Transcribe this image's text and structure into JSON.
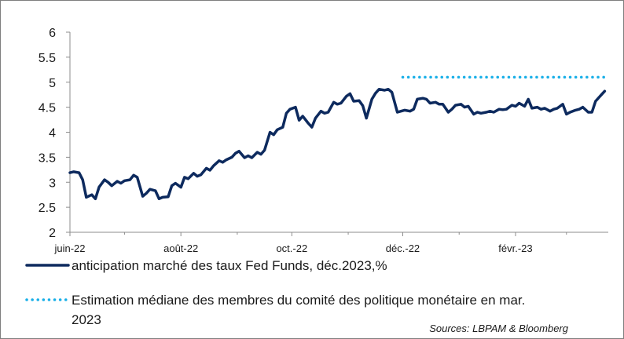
{
  "chart_data": {
    "type": "line",
    "x_ticks": [
      "juin-22",
      "août-22",
      "oct.-22",
      "déc.-22",
      "févr.-23"
    ],
    "y_ticks": [
      "2",
      "2.5",
      "3",
      "3.5",
      "4",
      "4.5",
      "5",
      "5.5",
      "6"
    ],
    "ylim": [
      2,
      6
    ],
    "xlim": [
      "2022-06-01",
      "2023-03-24"
    ],
    "grid": false,
    "legend_position": "bottom",
    "series": [
      {
        "name": "anticipation marché des taux Fed Funds, déc.2023,%",
        "color": "#0d2a5e",
        "style": "solid",
        "points": [
          [
            "2022-06-01",
            3.19
          ],
          [
            "2022-06-03",
            3.21
          ],
          [
            "2022-06-06",
            3.19
          ],
          [
            "2022-06-08",
            3.05
          ],
          [
            "2022-06-10",
            2.7
          ],
          [
            "2022-06-13",
            2.75
          ],
          [
            "2022-06-15",
            2.67
          ],
          [
            "2022-06-17",
            2.9
          ],
          [
            "2022-06-20",
            3.05
          ],
          [
            "2022-06-22",
            3.0
          ],
          [
            "2022-06-24",
            2.93
          ],
          [
            "2022-06-27",
            3.02
          ],
          [
            "2022-06-29",
            2.98
          ],
          [
            "2022-07-01",
            3.03
          ],
          [
            "2022-07-04",
            3.05
          ],
          [
            "2022-07-06",
            3.14
          ],
          [
            "2022-07-08",
            3.1
          ],
          [
            "2022-07-11",
            2.72
          ],
          [
            "2022-07-13",
            2.78
          ],
          [
            "2022-07-15",
            2.86
          ],
          [
            "2022-07-18",
            2.83
          ],
          [
            "2022-07-20",
            2.67
          ],
          [
            "2022-07-22",
            2.7
          ],
          [
            "2022-07-25",
            2.71
          ],
          [
            "2022-07-27",
            2.93
          ],
          [
            "2022-07-29",
            2.98
          ],
          [
            "2022-08-01",
            2.9
          ],
          [
            "2022-08-03",
            3.1
          ],
          [
            "2022-08-05",
            3.07
          ],
          [
            "2022-08-08",
            3.18
          ],
          [
            "2022-08-10",
            3.12
          ],
          [
            "2022-08-12",
            3.15
          ],
          [
            "2022-08-15",
            3.28
          ],
          [
            "2022-08-17",
            3.24
          ],
          [
            "2022-08-19",
            3.33
          ],
          [
            "2022-08-22",
            3.43
          ],
          [
            "2022-08-24",
            3.4
          ],
          [
            "2022-08-26",
            3.45
          ],
          [
            "2022-08-29",
            3.5
          ],
          [
            "2022-08-31",
            3.58
          ],
          [
            "2022-09-02",
            3.62
          ],
          [
            "2022-09-05",
            3.49
          ],
          [
            "2022-09-07",
            3.53
          ],
          [
            "2022-09-09",
            3.49
          ],
          [
            "2022-09-12",
            3.6
          ],
          [
            "2022-09-14",
            3.56
          ],
          [
            "2022-09-16",
            3.64
          ],
          [
            "2022-09-19",
            4.0
          ],
          [
            "2022-09-21",
            3.95
          ],
          [
            "2022-09-23",
            4.05
          ],
          [
            "2022-09-26",
            4.1
          ],
          [
            "2022-09-28",
            4.38
          ],
          [
            "2022-09-30",
            4.46
          ],
          [
            "2022-10-03",
            4.5
          ],
          [
            "2022-10-05",
            4.24
          ],
          [
            "2022-10-07",
            4.32
          ],
          [
            "2022-10-10",
            4.18
          ],
          [
            "2022-10-12",
            4.1
          ],
          [
            "2022-10-14",
            4.28
          ],
          [
            "2022-10-17",
            4.42
          ],
          [
            "2022-10-19",
            4.38
          ],
          [
            "2022-10-21",
            4.4
          ],
          [
            "2022-10-24",
            4.6
          ],
          [
            "2022-10-26",
            4.56
          ],
          [
            "2022-10-28",
            4.58
          ],
          [
            "2022-10-31",
            4.72
          ],
          [
            "2022-11-02",
            4.77
          ],
          [
            "2022-11-04",
            4.62
          ],
          [
            "2022-11-07",
            4.63
          ],
          [
            "2022-11-09",
            4.53
          ],
          [
            "2022-11-11",
            4.28
          ],
          [
            "2022-11-14",
            4.66
          ],
          [
            "2022-11-16",
            4.78
          ],
          [
            "2022-11-18",
            4.86
          ],
          [
            "2022-11-21",
            4.84
          ],
          [
            "2022-11-23",
            4.86
          ],
          [
            "2022-11-25",
            4.8
          ],
          [
            "2022-11-28",
            4.4
          ],
          [
            "2022-11-30",
            4.42
          ],
          [
            "2022-12-02",
            4.44
          ],
          [
            "2022-12-05",
            4.42
          ],
          [
            "2022-12-07",
            4.46
          ],
          [
            "2022-12-09",
            4.66
          ],
          [
            "2022-12-12",
            4.68
          ],
          [
            "2022-12-14",
            4.66
          ],
          [
            "2022-12-16",
            4.58
          ],
          [
            "2022-12-19",
            4.6
          ],
          [
            "2022-12-21",
            4.56
          ],
          [
            "2022-12-23",
            4.56
          ],
          [
            "2022-12-26",
            4.4
          ],
          [
            "2022-12-28",
            4.46
          ],
          [
            "2022-12-30",
            4.54
          ],
          [
            "2023-01-02",
            4.56
          ],
          [
            "2023-01-04",
            4.5
          ],
          [
            "2023-01-06",
            4.52
          ],
          [
            "2023-01-09",
            4.36
          ],
          [
            "2023-01-11",
            4.4
          ],
          [
            "2023-01-13",
            4.38
          ],
          [
            "2023-01-16",
            4.4
          ],
          [
            "2023-01-18",
            4.42
          ],
          [
            "2023-01-20",
            4.4
          ],
          [
            "2023-01-23",
            4.46
          ],
          [
            "2023-01-25",
            4.45
          ],
          [
            "2023-01-27",
            4.46
          ],
          [
            "2023-01-30",
            4.54
          ],
          [
            "2023-02-01",
            4.52
          ],
          [
            "2023-02-03",
            4.58
          ],
          [
            "2023-02-06",
            4.52
          ],
          [
            "2023-02-08",
            4.66
          ],
          [
            "2023-02-10",
            4.48
          ],
          [
            "2023-02-13",
            4.5
          ],
          [
            "2023-02-15",
            4.46
          ],
          [
            "2023-02-17",
            4.48
          ],
          [
            "2023-02-20",
            4.42
          ],
          [
            "2023-02-22",
            4.46
          ],
          [
            "2023-02-24",
            4.48
          ],
          [
            "2023-02-27",
            4.56
          ],
          [
            "2023-03-01",
            4.36
          ],
          [
            "2023-03-03",
            4.4
          ],
          [
            "2023-03-06",
            4.44
          ],
          [
            "2023-03-08",
            4.46
          ],
          [
            "2023-03-10",
            4.5
          ],
          [
            "2023-03-13",
            4.4
          ],
          [
            "2023-03-15",
            4.4
          ],
          [
            "2023-03-17",
            4.62
          ],
          [
            "2023-03-20",
            4.74
          ],
          [
            "2023-03-22",
            4.82
          ]
        ]
      },
      {
        "name": "Estimation médiane des membres du comité des politique monétaire en mar. 2023",
        "color": "#1ab0e8",
        "style": "dotted",
        "points": [
          [
            "2022-12-01",
            5.1
          ],
          [
            "2023-03-24",
            5.1
          ]
        ]
      }
    ],
    "annotations": [
      "Sources: LBPAM & Bloomberg"
    ]
  },
  "legend": {
    "series1_label": "anticipation marché des taux Fed Funds, déc.2023,%",
    "series2_label_line1": "Estimation médiane des membres du comité des politique monétaire en mar.",
    "series2_label_line2": "2023"
  },
  "source_note": "Sources: LBPAM & Bloomberg"
}
